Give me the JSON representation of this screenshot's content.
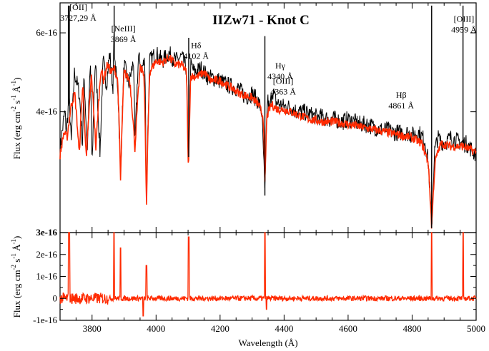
{
  "chart_data": [
    {
      "type": "line",
      "title": "IIZw71 - Knot C",
      "xlabel": "",
      "ylabel": "Flux (erg cm^-2 s^-1 Å^-1)",
      "ylabel_parts": {
        "base": "Flux (erg cm",
        "e1": "-2",
        "mid1": " s",
        "e2": "-1",
        "mid2": " Å",
        "e3": "-1",
        "end": ")"
      },
      "xlim": [
        3700,
        5000
      ],
      "ylim": [
        2.15e-16,
        7e-16
      ],
      "ylog": true,
      "xticks": [
        3800,
        4000,
        4200,
        4400,
        4600,
        4800,
        5000
      ],
      "yticks": [
        {
          "value": 4e-16,
          "label": "4e-16"
        },
        {
          "value": 6e-16,
          "label": "6e-16"
        }
      ],
      "series": [
        {
          "color": "#000000",
          "x": [
            3700,
            3715,
            3720,
            3728,
            3735,
            3745,
            3760,
            3770,
            3775,
            3785,
            3795,
            3800,
            3810,
            3825,
            3835,
            3845,
            3855,
            3865,
            3869,
            3872,
            3880,
            3889,
            3900,
            3915,
            3930,
            3934,
            3945,
            3955,
            3965,
            3970,
            3980,
            4000,
            4020,
            4040,
            4060,
            4080,
            4095,
            4101,
            4108,
            4120,
            4140,
            4160,
            4180,
            4200,
            4220,
            4240,
            4260,
            4280,
            4300,
            4320,
            4330,
            4340,
            4348,
            4355,
            4363,
            4375,
            4400,
            4420,
            4440,
            4460,
            4480,
            4500,
            4520,
            4540,
            4560,
            4580,
            4600,
            4620,
            4640,
            4660,
            4680,
            4700,
            4720,
            4740,
            4760,
            4780,
            4800,
            4820,
            4840,
            4850,
            4861,
            4870,
            4880,
            4900,
            4920,
            4940,
            4959,
            4970,
            4985,
            5000
          ],
          "values": [
            3.3e-16,
            4e-16,
            3.6e-16,
            4.3e-16,
            3.4e-16,
            4.9e-16,
            4.4e-16,
            3.4e-16,
            4.8e-16,
            3.2e-16,
            5.1e-16,
            2.9e-16,
            5.2e-16,
            3.2e-16,
            5.2e-16,
            4.6e-16,
            5.4e-16,
            4.5e-16,
            6.2e-16,
            5e-16,
            4.6e-16,
            2.8e-16,
            5.1e-16,
            4.6e-16,
            5.2e-16,
            3.3e-16,
            5.3e-16,
            5e-16,
            5.2e-16,
            2.4e-16,
            5.2e-16,
            5.4e-16,
            5.2e-16,
            5.4e-16,
            5.2e-16,
            5.3e-16,
            5e-16,
            2.85e-16,
            5.1e-16,
            4.9e-16,
            5e-16,
            4.8e-16,
            4.75e-16,
            4.7e-16,
            4.6e-16,
            4.55e-16,
            4.5e-16,
            4.3e-16,
            4.4e-16,
            4.2e-16,
            4e-16,
            2.6e-16,
            4.3e-16,
            4e-16,
            4.5e-16,
            4.2e-16,
            4.1e-16,
            4.1e-16,
            4e-16,
            4e-16,
            3.95e-16,
            3.9e-16,
            3.9e-16,
            3.85e-16,
            3.85e-16,
            3.8e-16,
            3.85e-16,
            3.8e-16,
            3.75e-16,
            3.75e-16,
            3.7e-16,
            3.65e-16,
            3.65e-16,
            3.6e-16,
            3.6e-16,
            3.6e-16,
            3.55e-16,
            3.6e-16,
            3.45e-16,
            3.1e-16,
            2.2e-16,
            3.25e-16,
            3.5e-16,
            3.4e-16,
            3.5e-16,
            3.45e-16,
            3.4e-16,
            3.4e-16,
            3.3e-16,
            3.2e-16
          ]
        },
        {
          "color": "#ff2a00",
          "x": [
            3700,
            3712,
            3722,
            3734,
            3746,
            3760,
            3771,
            3782,
            3798,
            3812,
            3828,
            3836,
            3848,
            3860,
            3870,
            3880,
            3889,
            3900,
            3918,
            3934,
            3950,
            3962,
            3970,
            3980,
            4000,
            4020,
            4040,
            4060,
            4080,
            4095,
            4101,
            4108,
            4130,
            4150,
            4170,
            4200,
            4220,
            4240,
            4260,
            4280,
            4300,
            4320,
            4335,
            4340,
            4346,
            4360,
            4380,
            4400,
            4440,
            4480,
            4520,
            4560,
            4600,
            4640,
            4680,
            4720,
            4760,
            4800,
            4830,
            4850,
            4861,
            4872,
            4890,
            4920,
            4960,
            5000
          ],
          "values": [
            3.2e-16,
            3.6e-16,
            3.5e-16,
            4.1e-16,
            4.4e-16,
            3.2e-16,
            4.6e-16,
            3.1e-16,
            4.8e-16,
            3.3e-16,
            5e-16,
            4.7e-16,
            5.1e-16,
            4.9e-16,
            5e-16,
            4.7e-16,
            2.8e-16,
            4.9e-16,
            4.7e-16,
            3.3e-16,
            5e-16,
            4.9e-16,
            2.4e-16,
            4.9e-16,
            5.2e-16,
            5.15e-16,
            5.3e-16,
            5.1e-16,
            5.1e-16,
            4.9e-16,
            2.85e-16,
            4.8e-16,
            4.8e-16,
            4.9e-16,
            4.7e-16,
            4.7e-16,
            4.6e-16,
            4.5e-16,
            4.4e-16,
            4.35e-16,
            4.3e-16,
            4.15e-16,
            3.9e-16,
            2.7e-16,
            3.9e-16,
            4.15e-16,
            4.05e-16,
            4.05e-16,
            3.95e-16,
            3.85e-16,
            3.8e-16,
            3.8e-16,
            3.75e-16,
            3.7e-16,
            3.65e-16,
            3.6e-16,
            3.55e-16,
            3.5e-16,
            3.4e-16,
            3.1e-16,
            2.2e-16,
            3.1e-16,
            3.4e-16,
            3.35e-16,
            3.35e-16,
            3.25e-16
          ]
        }
      ],
      "emission_lines": [
        {
          "x": 3726,
          "top": 6.9e-16
        },
        {
          "x": 3729,
          "top": 6.9e-16
        },
        {
          "x": 3869,
          "top": 6.9e-16
        },
        {
          "x": 4102,
          "top": 5.85e-16
        },
        {
          "x": 4340,
          "top": 5.9e-16
        },
        {
          "x": 4363,
          "top": 4.5e-16
        },
        {
          "x": 4861,
          "top": 6.9e-16
        },
        {
          "x": 4959,
          "top": 6.9e-16
        }
      ],
      "annotations": [
        {
          "lines": [
            "[OII]",
            "3727,29 Å"
          ],
          "x": 3757,
          "y": 6.75e-16
        },
        {
          "lines": [
            "[NeIII]",
            "3869 Å"
          ],
          "x": 3898,
          "y": 6.05e-16
        },
        {
          "lines": [
            "Hδ",
            "4102 Å"
          ],
          "x": 4125,
          "y": 5.55e-16
        },
        {
          "lines": [
            "Hγ",
            "4340 Å"
          ],
          "x": 4388,
          "y": 5e-16
        },
        {
          "lines": [
            "[OIII]",
            "4363 Å"
          ],
          "x": 4397,
          "y": 4.62e-16
        },
        {
          "lines": [
            "Hβ",
            "4861 Å"
          ],
          "x": 4766,
          "y": 4.3e-16
        },
        {
          "lines": [
            "[OIII]",
            "4959 Å"
          ],
          "x": 4962,
          "y": 6.35e-16
        }
      ]
    },
    {
      "type": "line",
      "title": "",
      "xlabel": "Wavelength (Å)",
      "ylabel": "Flux (erg cm^-2 s^-1 Å^-1)",
      "ylabel_parts": {
        "base": "Flux (erg cm",
        "e1": "-2",
        "mid1": " s",
        "e2": "-1",
        "mid2": " Å",
        "e3": "-1",
        "end": ")"
      },
      "xlim": [
        3700,
        5000
      ],
      "ylim": [
        -1e-16,
        3e-16
      ],
      "xticks": [
        3800,
        4000,
        4200,
        4400,
        4600,
        4800,
        5000
      ],
      "yticks": [
        {
          "value": -1e-16,
          "label": "-1e-16",
          "bold": false
        },
        {
          "value": 0,
          "label": "0",
          "bold": false
        },
        {
          "value": 1e-16,
          "label": "1e-16",
          "bold": false
        },
        {
          "value": 2e-16,
          "label": "2e-16",
          "bold": false
        },
        {
          "value": 3e-16,
          "label": "3e-16",
          "bold": true
        }
      ],
      "residual_noise": 1.2e-17,
      "spikes": [
        {
          "x": 3727,
          "value": 3e-16
        },
        {
          "x": 3729,
          "value": 3e-16
        },
        {
          "x": 3869,
          "value": 3e-16
        },
        {
          "x": 3889,
          "value": 2.3e-16
        },
        {
          "x": 3970,
          "value": 1.5e-16
        },
        {
          "x": 4102,
          "value": 2.8e-16
        },
        {
          "x": 4340,
          "value": 3e-16
        },
        {
          "x": 4861,
          "value": 3e-16
        },
        {
          "x": 4959,
          "value": 3e-16
        }
      ],
      "dips": [
        {
          "x": 3960,
          "value": -8e-17
        },
        {
          "x": 4345,
          "value": -5e-17
        }
      ],
      "series": [
        {
          "color": "#ff2a00"
        }
      ]
    }
  ]
}
